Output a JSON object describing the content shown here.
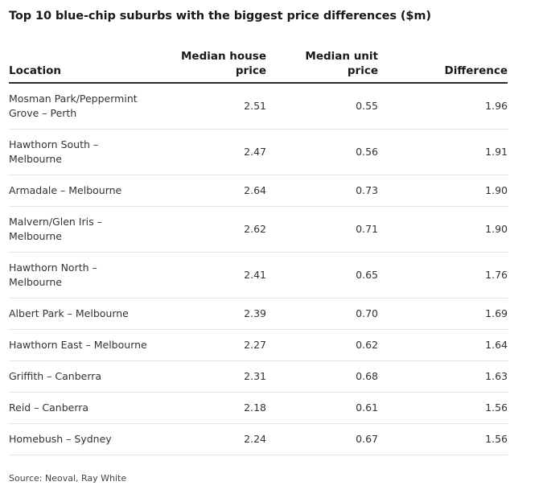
{
  "title": "Top 10 blue-chip suburbs with the biggest price differences ($m)",
  "source": "Source: Neoval, Ray White",
  "chart_data": {
    "type": "table",
    "title": "Top 10 blue-chip suburbs with the biggest price differences ($m)",
    "columns": {
      "location": "Location",
      "house_line1": "Median house",
      "house_line2": "price",
      "unit_line1": "Median unit",
      "unit_line2": "price",
      "difference": "Difference"
    },
    "rows": [
      {
        "loc1": "Mosman Park/Peppermint",
        "loc2": "Grove – Perth",
        "house": "2.51",
        "unit": "0.55",
        "diff": "1.96"
      },
      {
        "loc1": "Hawthorn South –",
        "loc2": "Melbourne",
        "house": "2.47",
        "unit": "0.56",
        "diff": "1.91"
      },
      {
        "loc1": "Armadale – Melbourne",
        "loc2": "",
        "house": "2.64",
        "unit": "0.73",
        "diff": "1.90"
      },
      {
        "loc1": "Malvern/Glen Iris –",
        "loc2": "Melbourne",
        "house": "2.62",
        "unit": "0.71",
        "diff": "1.90"
      },
      {
        "loc1": "Hawthorn North –",
        "loc2": "Melbourne",
        "house": "2.41",
        "unit": "0.65",
        "diff": "1.76"
      },
      {
        "loc1": "Albert Park – Melbourne",
        "loc2": "",
        "house": "2.39",
        "unit": "0.70",
        "diff": "1.69"
      },
      {
        "loc1": "Hawthorn East – Melbourne",
        "loc2": "",
        "house": "2.27",
        "unit": "0.62",
        "diff": "1.64"
      },
      {
        "loc1": "Griffith – Canberra",
        "loc2": "",
        "house": "2.31",
        "unit": "0.68",
        "diff": "1.63"
      },
      {
        "loc1": "Reid – Canberra",
        "loc2": "",
        "house": "2.18",
        "unit": "0.61",
        "diff": "1.56"
      },
      {
        "loc1": "Homebush – Sydney",
        "loc2": "",
        "house": "2.24",
        "unit": "0.67",
        "diff": "1.56"
      }
    ]
  }
}
